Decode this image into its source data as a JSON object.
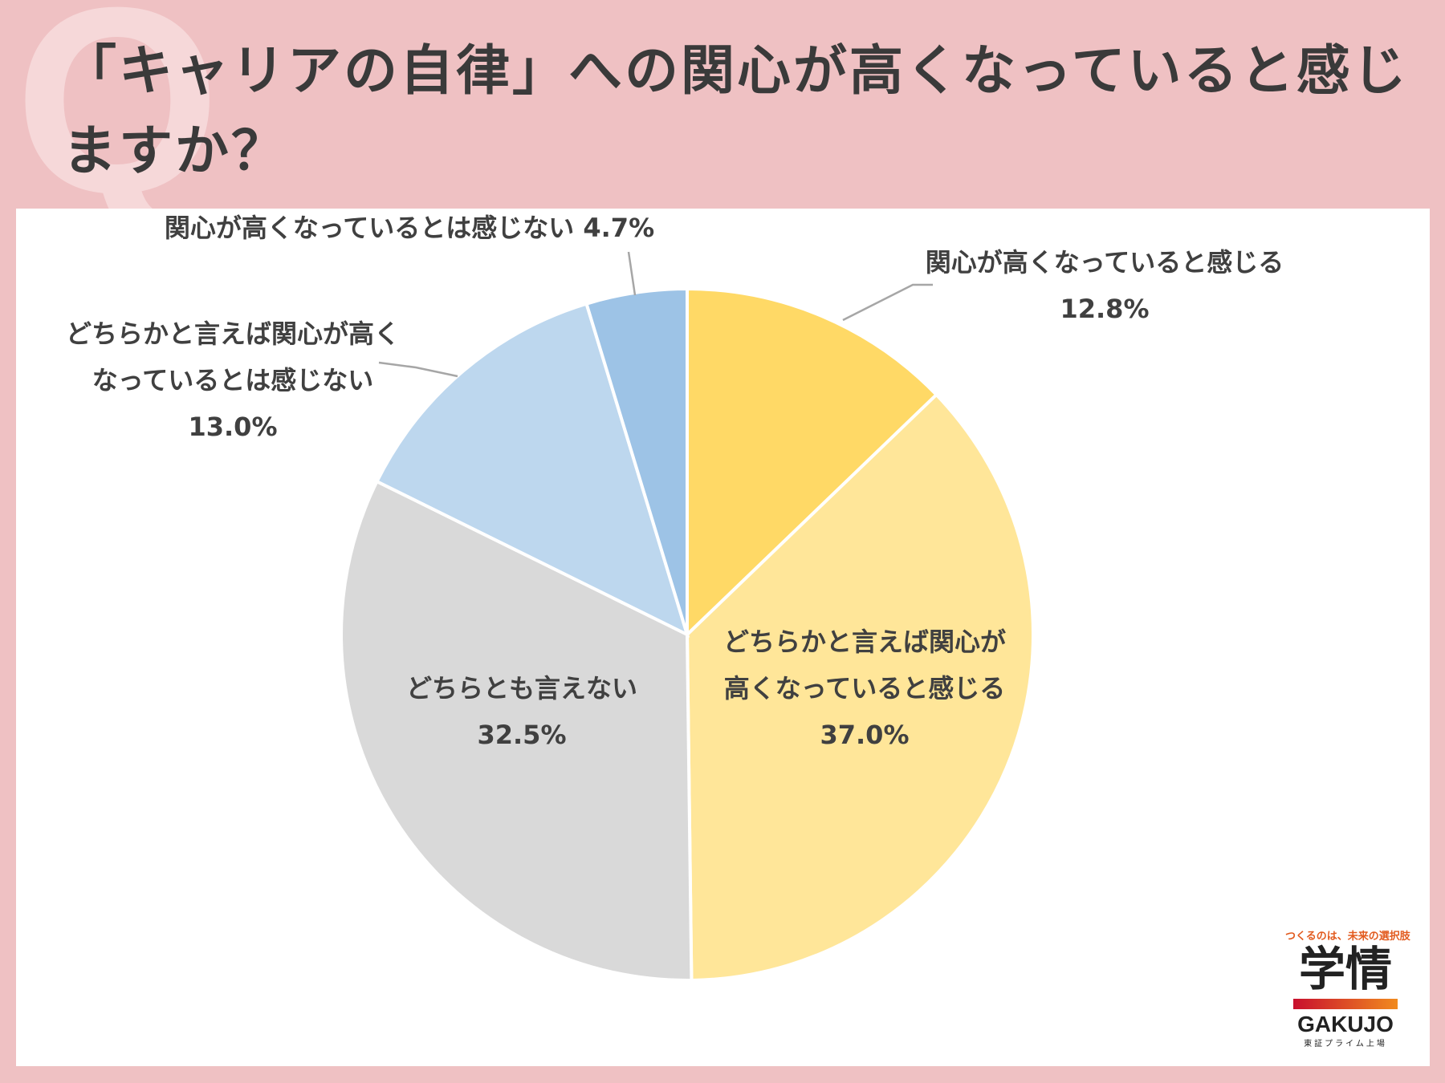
{
  "page": {
    "bg_mark": "Q",
    "title": "「キャリアの自律」への関心が高くなっていると感じますか？"
  },
  "chart_data": {
    "type": "pie",
    "start": "top",
    "direction": "clockwise",
    "slices": [
      {
        "label_lines": [
          "関心が高くなっていると感じる",
          "12.8%"
        ],
        "value": 12.8,
        "color": "#ffd966"
      },
      {
        "label_lines": [
          "どちらかと言えば関心が",
          "高くなっていると感じる",
          "37.0%"
        ],
        "value": 37.0,
        "color": "#ffe699"
      },
      {
        "label_lines": [
          "どちらとも言えない",
          "32.5%"
        ],
        "value": 32.5,
        "color": "#d9d9d9"
      },
      {
        "label_lines": [
          "どちらかと言えば関心が高く",
          "なっているとは感じない",
          "13.0%"
        ],
        "value": 13.0,
        "color": "#bdd7ee"
      },
      {
        "label_lines": [
          "関心が高くなっているとは感じない 4.7%"
        ],
        "value": 4.7,
        "color": "#9dc3e6"
      }
    ]
  },
  "logo": {
    "tagline": "つくるのは、未来の選択肢",
    "mark": "学情",
    "brand": "GAKUJO",
    "sub": "東証プライム上場"
  }
}
